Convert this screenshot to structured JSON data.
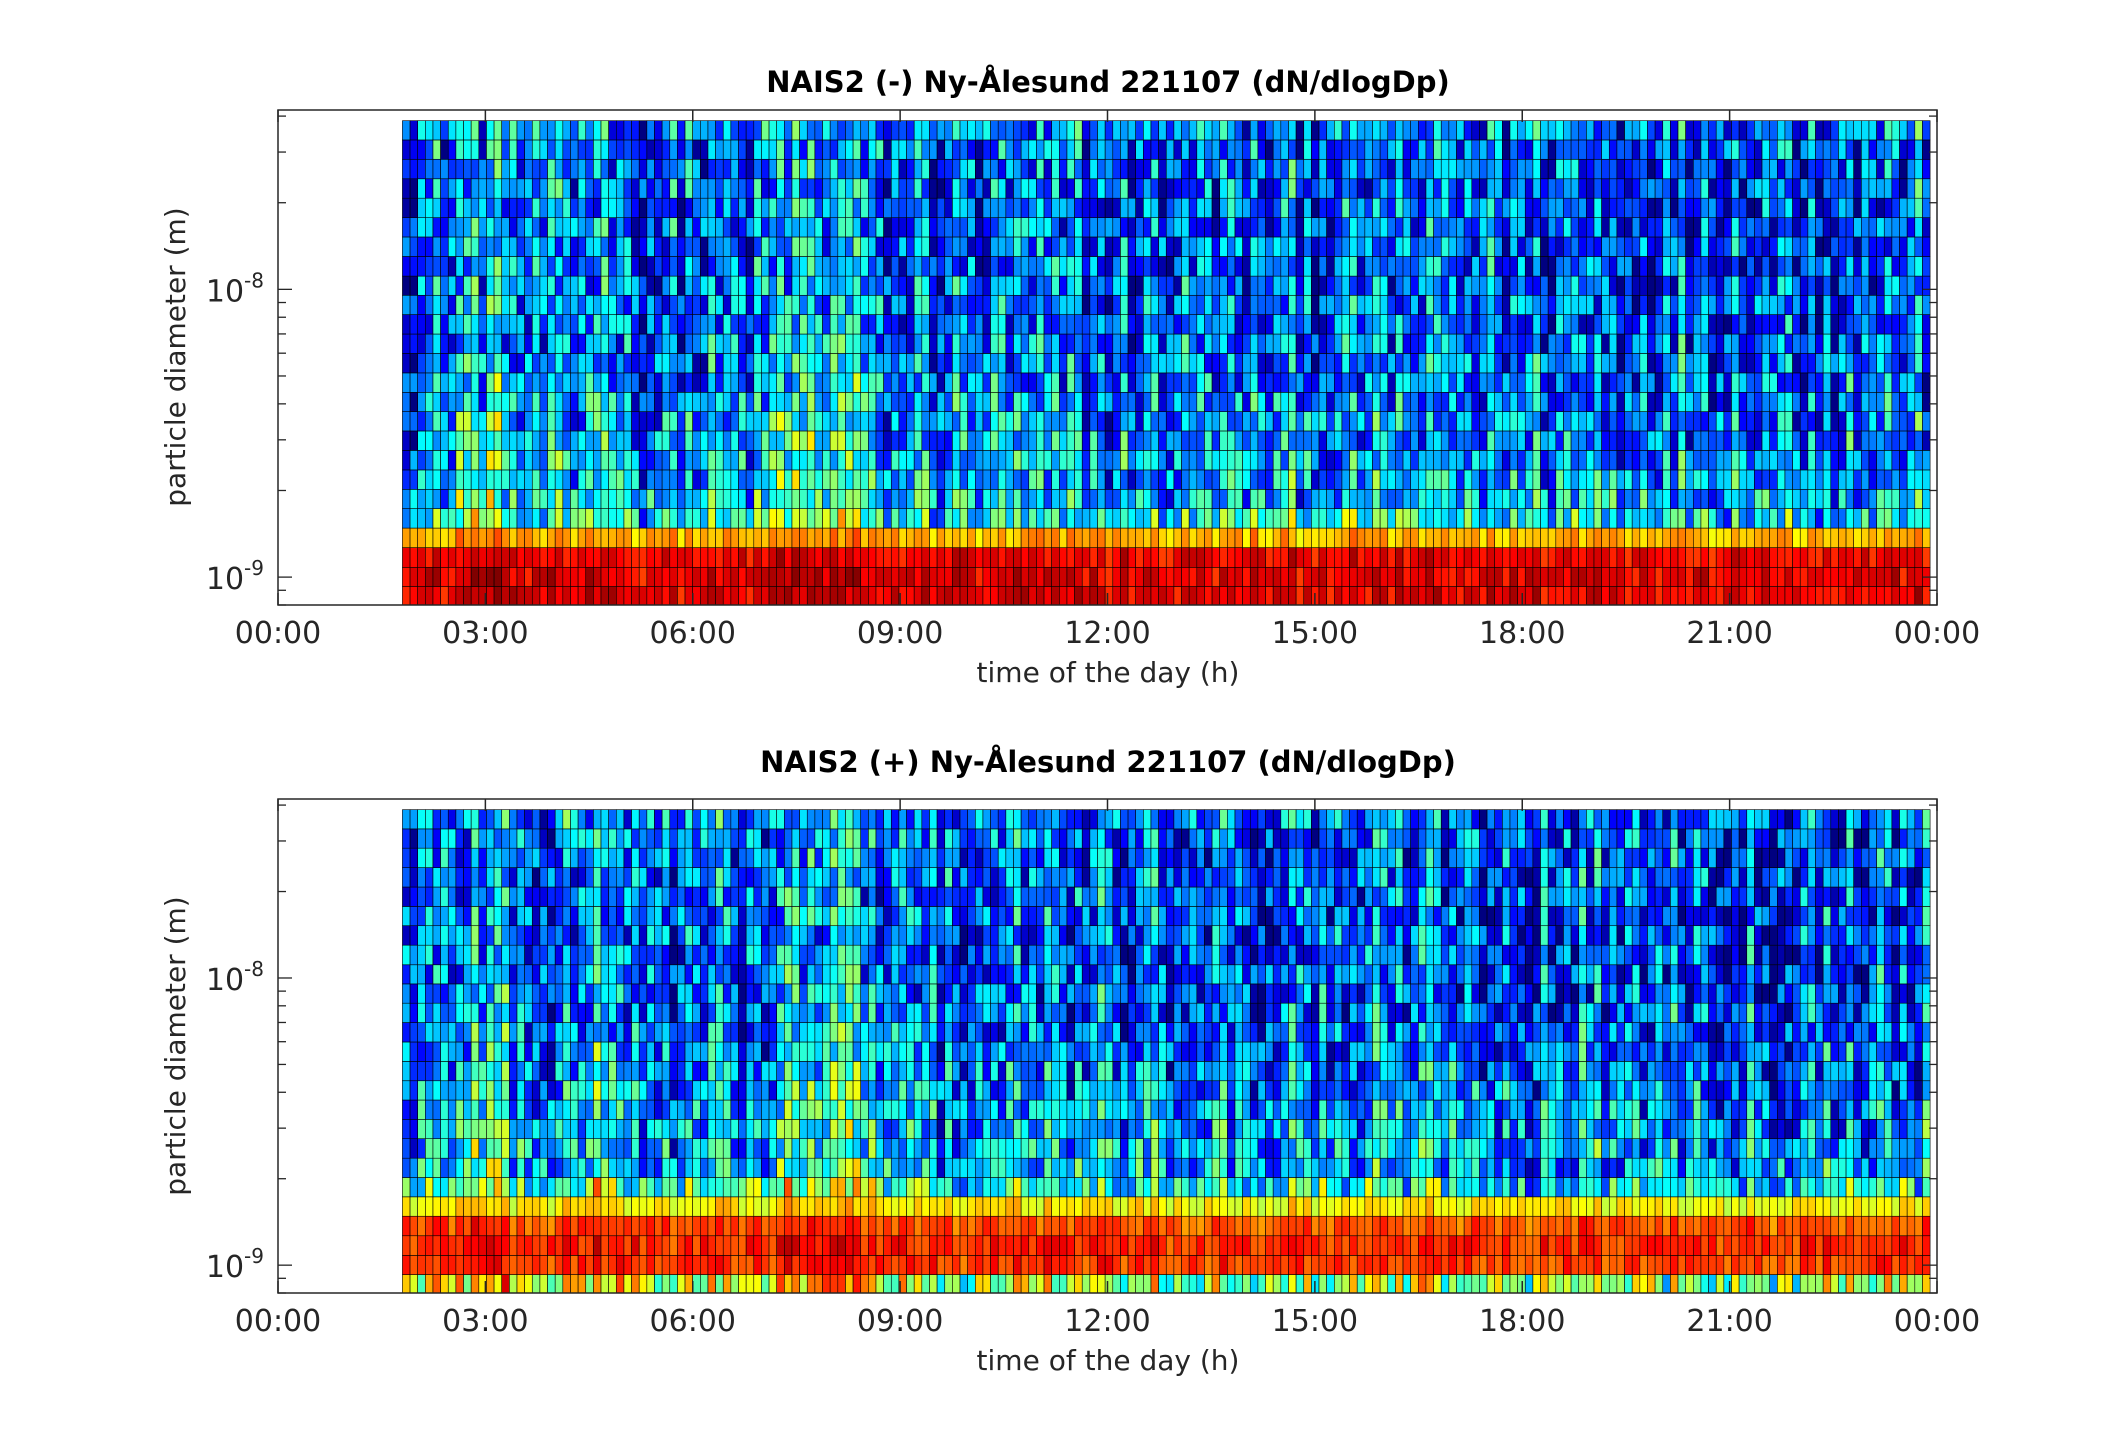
{
  "chart_data": [
    {
      "type": "heatmap",
      "title": "NAIS2 (-) Ny-Ålesund 221107 (dN/dlogDp)",
      "xlabel": "time of the day (h)",
      "ylabel": "particle diameter (m)",
      "x_ticks": [
        "00:00",
        "03:00",
        "06:00",
        "09:00",
        "12:00",
        "15:00",
        "18:00",
        "21:00",
        "00:00"
      ],
      "xlim_hours": [
        0,
        24
      ],
      "data_start_hour": 1.8,
      "y_scale": "log",
      "ylim_m": [
        8e-10,
        4.2e-08
      ],
      "y_ticks": [
        {
          "base": "10",
          "exp": "-9",
          "value": 1e-09
        },
        {
          "base": "10",
          "exp": "-8",
          "value": 1e-08
        }
      ],
      "colormap": "jet",
      "grid": "cell edges drawn in black",
      "size_bins_m": [
        8.6e-10,
        1e-09,
        1.17e-09,
        1.37e-09,
        1.6e-09,
        1.87e-09,
        2.18e-09,
        2.55e-09,
        2.98e-09,
        3.48e-09,
        4.06e-09,
        4.74e-09,
        5.54e-09,
        6.47e-09,
        7.56e-09,
        8.83e-09,
        1.03e-08,
        1.2e-08,
        1.41e-08,
        1.64e-08,
        1.92e-08,
        2.24e-08,
        2.62e-08,
        3.06e-08,
        3.57e-08
      ],
      "typical_level_by_bin": [
        0.9,
        0.9,
        0.88,
        0.7,
        0.38,
        0.33,
        0.3,
        0.29,
        0.28,
        0.27,
        0.26,
        0.25,
        0.24,
        0.23,
        0.22,
        0.22,
        0.22,
        0.21,
        0.21,
        0.21,
        0.21,
        0.22,
        0.22,
        0.23,
        0.25
      ],
      "enhanced_periods_hours": [
        [
          2.5,
          3.3
        ],
        [
          4.4,
          4.9
        ],
        [
          7.0,
          8.5
        ]
      ],
      "value_units": "relative color level (0 = dark blue, 1 = dark red)"
    },
    {
      "type": "heatmap",
      "title": "NAIS2 (+) Ny-Ålesund 221107 (dN/dlogDp)",
      "xlabel": "time of the day (h)",
      "ylabel": "particle diameter (m)",
      "x_ticks": [
        "00:00",
        "03:00",
        "06:00",
        "09:00",
        "12:00",
        "15:00",
        "18:00",
        "21:00",
        "00:00"
      ],
      "xlim_hours": [
        0,
        24
      ],
      "data_start_hour": 1.8,
      "y_scale": "log",
      "ylim_m": [
        8e-10,
        4.2e-08
      ],
      "y_ticks": [
        {
          "base": "10",
          "exp": "-9",
          "value": 1e-09
        },
        {
          "base": "10",
          "exp": "-8",
          "value": 1e-08
        }
      ],
      "colormap": "jet",
      "grid": "cell edges drawn in black",
      "size_bins_m": [
        8.6e-10,
        1e-09,
        1.17e-09,
        1.37e-09,
        1.6e-09,
        1.87e-09,
        2.18e-09,
        2.55e-09,
        2.98e-09,
        3.48e-09,
        4.06e-09,
        4.74e-09,
        5.54e-09,
        6.47e-09,
        7.56e-09,
        8.83e-09,
        1.03e-08,
        1.2e-08,
        1.41e-08,
        1.64e-08,
        1.92e-08,
        2.24e-08,
        2.62e-08,
        3.06e-08,
        3.57e-08
      ],
      "typical_level_by_bin": [
        0.55,
        0.82,
        0.84,
        0.8,
        0.64,
        0.42,
        0.32,
        0.3,
        0.29,
        0.28,
        0.27,
        0.26,
        0.24,
        0.23,
        0.22,
        0.22,
        0.22,
        0.21,
        0.21,
        0.21,
        0.21,
        0.22,
        0.22,
        0.23,
        0.25
      ],
      "enhanced_periods_hours": [
        [
          2.5,
          3.3
        ],
        [
          4.4,
          4.9
        ],
        [
          7.2,
          8.6
        ]
      ],
      "value_units": "relative color level (0 = dark blue, 1 = dark red)"
    }
  ]
}
